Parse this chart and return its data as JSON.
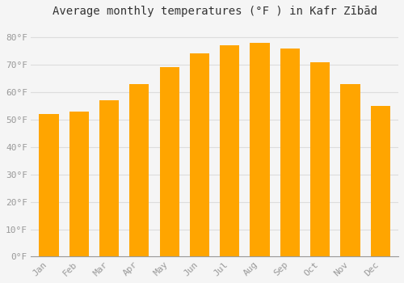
{
  "title": "Average monthly temperatures (°F ) in Kafr Zībād",
  "months": [
    "Jan",
    "Feb",
    "Mar",
    "Apr",
    "May",
    "Jun",
    "Jul",
    "Aug",
    "Sep",
    "Oct",
    "Nov",
    "Dec"
  ],
  "values": [
    52,
    53,
    57,
    63,
    69,
    74,
    77,
    78,
    76,
    71,
    63,
    55
  ],
  "bar_color": "#FFA500",
  "bar_color_light": "#FFD080",
  "background_color": "#f5f5f5",
  "plot_background": "#f5f5f5",
  "grid_color": "#dddddd",
  "yticks": [
    0,
    10,
    20,
    30,
    40,
    50,
    60,
    70,
    80
  ],
  "ylim": [
    0,
    85
  ],
  "title_fontsize": 10,
  "tick_fontsize": 8,
  "tick_color": "#999999",
  "title_color": "#333333",
  "bar_width": 0.65
}
